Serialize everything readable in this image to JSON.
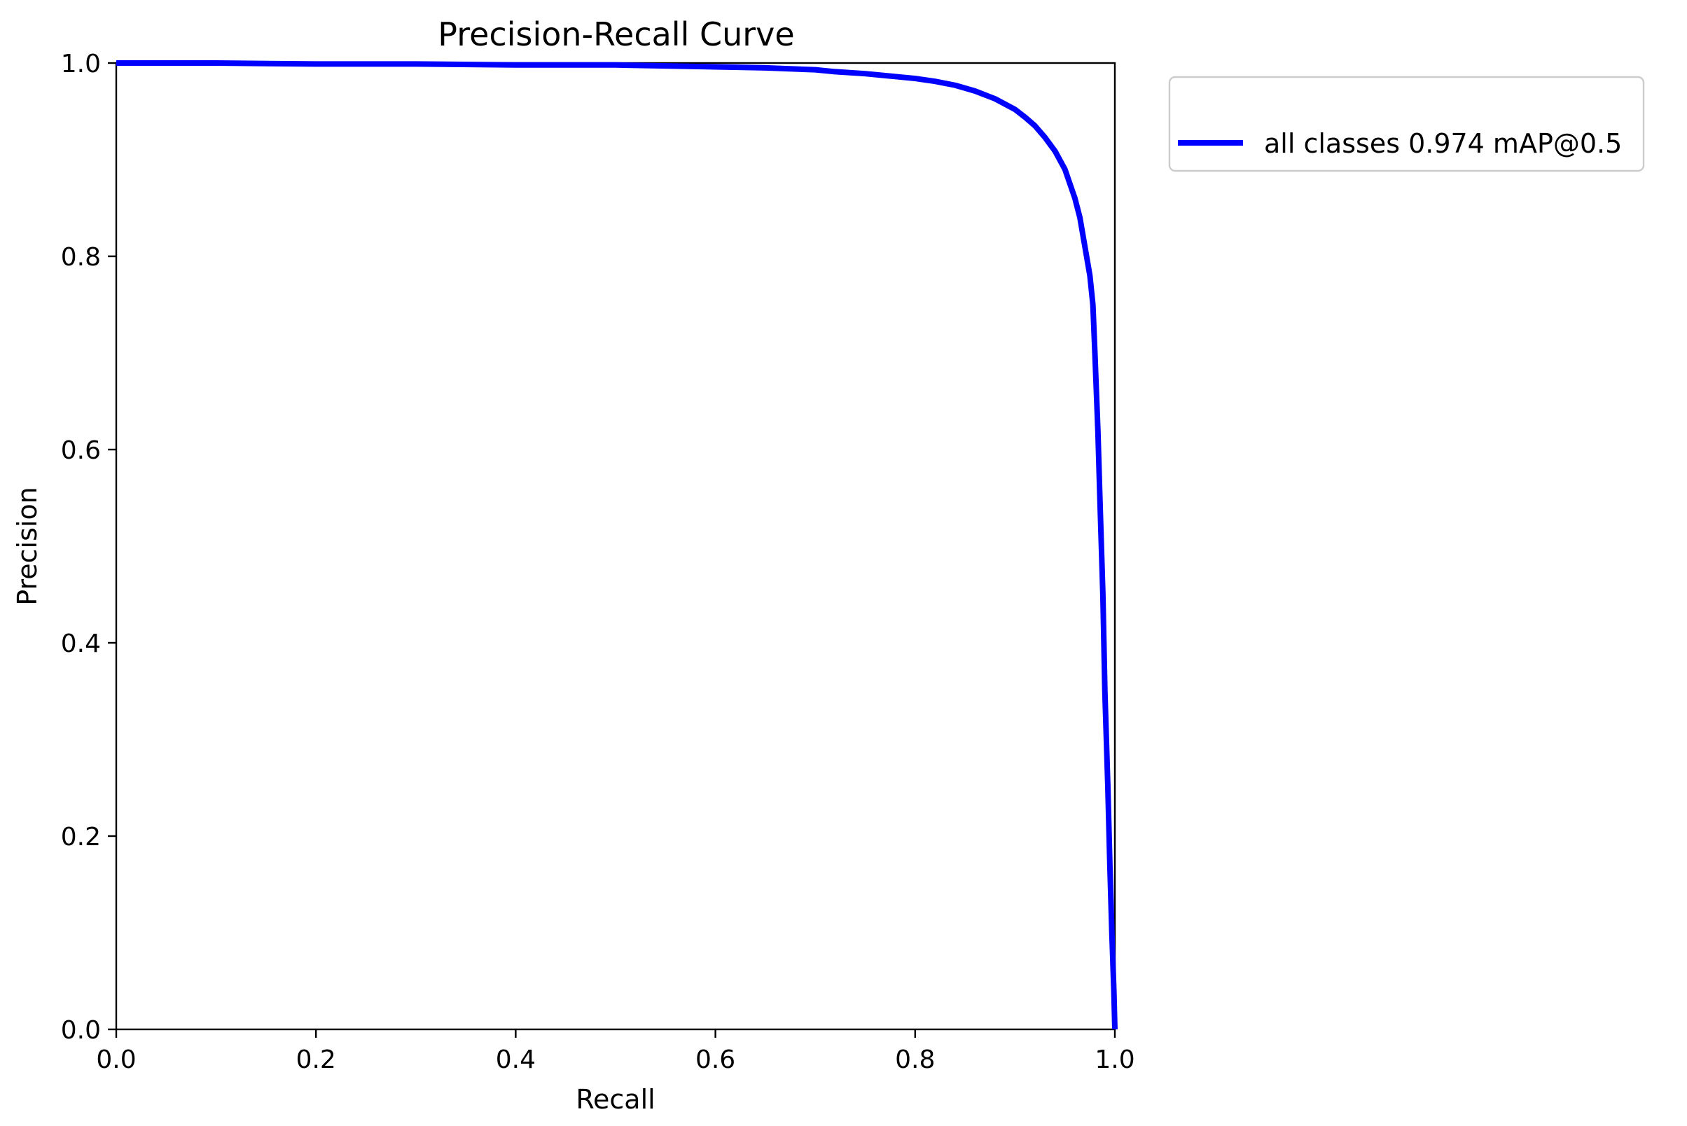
{
  "chart_data": {
    "type": "line",
    "title": "Precision-Recall Curve",
    "xlabel": "Recall",
    "ylabel": "Precision",
    "xlim": [
      0.0,
      1.0
    ],
    "ylim": [
      0.0,
      1.0
    ],
    "xticks": [
      "0.0",
      "0.2",
      "0.4",
      "0.6",
      "0.8",
      "1.0"
    ],
    "yticks": [
      "0.0",
      "0.2",
      "0.4",
      "0.6",
      "0.8",
      "1.0"
    ],
    "grid": false,
    "legend_position": "outside-top-right",
    "series": [
      {
        "name": "all classes 0.974 mAP@0.5",
        "color": "#0000ff",
        "x": [
          0.0,
          0.05,
          0.1,
          0.2,
          0.3,
          0.4,
          0.5,
          0.55,
          0.6,
          0.65,
          0.7,
          0.72,
          0.75,
          0.78,
          0.8,
          0.82,
          0.84,
          0.86,
          0.88,
          0.9,
          0.91,
          0.92,
          0.93,
          0.94,
          0.95,
          0.955,
          0.96,
          0.965,
          0.97,
          0.975,
          0.978,
          0.98,
          0.983,
          0.985,
          0.988,
          0.99,
          0.993,
          0.995,
          0.997,
          0.999,
          1.0
        ],
        "y": [
          1.0,
          1.0,
          1.0,
          0.999,
          0.999,
          0.998,
          0.998,
          0.997,
          0.996,
          0.995,
          0.993,
          0.991,
          0.989,
          0.986,
          0.984,
          0.981,
          0.977,
          0.971,
          0.963,
          0.952,
          0.944,
          0.935,
          0.923,
          0.909,
          0.89,
          0.875,
          0.86,
          0.84,
          0.81,
          0.78,
          0.75,
          0.7,
          0.62,
          0.55,
          0.45,
          0.35,
          0.25,
          0.17,
          0.1,
          0.04,
          0.0
        ]
      }
    ]
  }
}
